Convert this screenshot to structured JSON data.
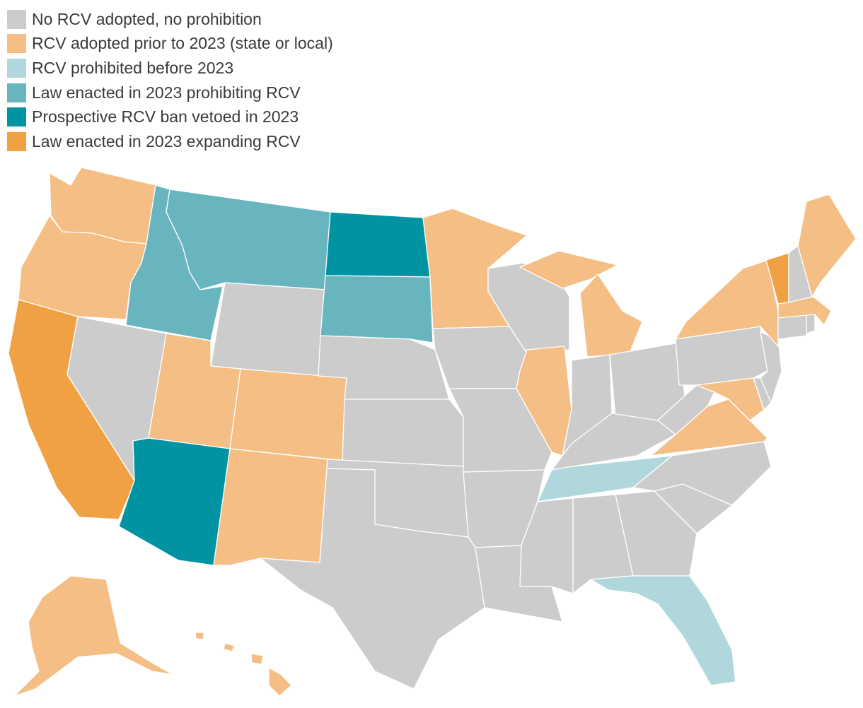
{
  "legend": {
    "items": [
      {
        "key": "none",
        "label": "No RCV adopted, no prohibition",
        "color": "#cccccc"
      },
      {
        "key": "adopted",
        "label": "RCV adopted prior to 2023 (state or local)",
        "color": "#f4be84"
      },
      {
        "key": "prohibited",
        "label": "RCV prohibited before 2023",
        "color": "#b0d8dc"
      },
      {
        "key": "ban2023",
        "label": "Law enacted in 2023 prohibiting RCV",
        "color": "#69b5bf"
      },
      {
        "key": "vetoed",
        "label": "Prospective RCV ban vetoed in 2023",
        "color": "#0094a3"
      },
      {
        "key": "expand2023",
        "label": "Law enacted in 2023 expanding RCV",
        "color": "#f0a143"
      }
    ]
  },
  "states": {
    "WA": "adopted",
    "OR": "adopted",
    "CA": "expand2023",
    "NV": "none",
    "ID": "ban2023",
    "MT": "ban2023",
    "WY": "none",
    "UT": "adopted",
    "CO": "adopted",
    "AZ": "vetoed",
    "NM": "adopted",
    "ND": "vetoed",
    "SD": "ban2023",
    "NE": "none",
    "KS": "none",
    "OK": "none",
    "TX": "none",
    "MN": "adopted",
    "IA": "none",
    "MO": "none",
    "AR": "none",
    "LA": "none",
    "WI": "none",
    "IL": "adopted",
    "MI": "adopted",
    "IN": "none",
    "OH": "none",
    "KY": "none",
    "TN": "prohibited",
    "MS": "none",
    "AL": "none",
    "GA": "none",
    "FL": "prohibited",
    "SC": "none",
    "NC": "none",
    "VA": "adopted",
    "WV": "none",
    "PA": "none",
    "NY": "adopted",
    "VT": "expand2023",
    "NH": "none",
    "ME": "adopted",
    "MA": "adopted",
    "CT": "none",
    "RI": "none",
    "NJ": "none",
    "DE": "none",
    "MD": "adopted",
    "AK": "adopted",
    "HI": "adopted"
  }
}
